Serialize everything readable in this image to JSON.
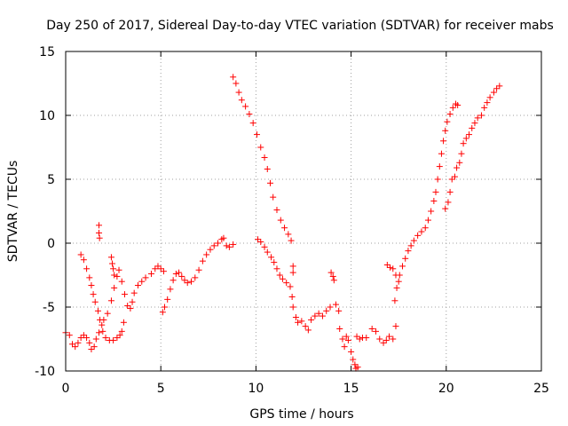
{
  "chart_data": {
    "type": "scatter",
    "title": "Day 250 of 2017, Sidereal Day-to-day VTEC variation (SDTVAR) for receiver mabs",
    "xlabel": "GPS time / hours",
    "ylabel": "SDTVAR / TECUs",
    "xlim": [
      0,
      25
    ],
    "ylim": [
      -10,
      15
    ],
    "xticks": [
      "0",
      "5",
      "10",
      "15",
      "20",
      "25"
    ],
    "yticks": [
      "-10",
      "-5",
      "0",
      "5",
      "10",
      "15"
    ],
    "grid": true,
    "marker": "plus",
    "color": "#ff0000",
    "series": [
      {
        "points": [
          [
            0.0,
            -7.0
          ],
          [
            0.2,
            -7.2
          ],
          [
            0.35,
            -7.9
          ],
          [
            0.5,
            -8.1
          ],
          [
            0.65,
            -7.8
          ],
          [
            0.8,
            -7.4
          ],
          [
            0.95,
            -7.2
          ],
          [
            1.1,
            -7.4
          ],
          [
            1.25,
            -7.8
          ],
          [
            1.35,
            -8.3
          ],
          [
            1.5,
            -8.1
          ],
          [
            1.6,
            -7.5
          ],
          [
            1.75,
            -7.0
          ],
          [
            1.9,
            -6.4
          ],
          [
            2.0,
            -6.0
          ],
          [
            2.2,
            -5.5
          ],
          [
            2.4,
            -4.5
          ],
          [
            2.55,
            -3.5
          ],
          [
            2.7,
            -2.6
          ],
          [
            2.8,
            -2.1
          ],
          [
            2.95,
            -3.0
          ],
          [
            3.1,
            -4.0
          ],
          [
            3.25,
            -4.9
          ],
          [
            3.4,
            -5.1
          ],
          [
            3.5,
            -4.6
          ],
          [
            3.6,
            -3.9
          ],
          [
            3.8,
            -3.3
          ],
          [
            4.0,
            -3.0
          ],
          [
            4.2,
            -2.7
          ],
          [
            4.5,
            -2.4
          ],
          [
            4.7,
            -2.0
          ],
          [
            4.85,
            -1.8
          ],
          [
            5.0,
            -2.0
          ],
          [
            5.15,
            -2.2
          ]
        ]
      },
      {
        "points": [
          [
            0.8,
            -0.9
          ],
          [
            0.95,
            -1.3
          ],
          [
            1.1,
            -2.0
          ],
          [
            1.25,
            -2.7
          ],
          [
            1.35,
            -3.3
          ],
          [
            1.45,
            -4.0
          ],
          [
            1.55,
            -4.6
          ],
          [
            1.7,
            -5.3
          ],
          [
            1.8,
            -6.0
          ],
          [
            1.95,
            -6.9
          ],
          [
            2.1,
            -7.4
          ],
          [
            2.3,
            -7.6
          ],
          [
            2.5,
            -7.6
          ],
          [
            2.7,
            -7.4
          ],
          [
            2.85,
            -7.2
          ],
          [
            2.95,
            -6.9
          ],
          [
            3.05,
            -6.2
          ]
        ]
      },
      {
        "points": [
          [
            1.75,
            1.4
          ],
          [
            1.75,
            0.8
          ],
          [
            1.78,
            0.4
          ],
          [
            2.4,
            -1.1
          ],
          [
            2.45,
            -1.6
          ],
          [
            2.5,
            -2.0
          ],
          [
            2.55,
            -2.5
          ]
        ]
      },
      {
        "points": [
          [
            5.1,
            -5.4
          ],
          [
            5.2,
            -5.0
          ],
          [
            5.35,
            -4.4
          ],
          [
            5.5,
            -3.6
          ],
          [
            5.65,
            -2.9
          ],
          [
            5.8,
            -2.4
          ],
          [
            5.95,
            -2.3
          ],
          [
            6.1,
            -2.6
          ],
          [
            6.25,
            -2.9
          ],
          [
            6.4,
            -3.1
          ],
          [
            6.6,
            -3.0
          ],
          [
            6.8,
            -2.7
          ],
          [
            7.0,
            -2.1
          ],
          [
            7.2,
            -1.4
          ],
          [
            7.4,
            -0.9
          ],
          [
            7.6,
            -0.5
          ],
          [
            7.8,
            -0.2
          ],
          [
            8.0,
            0.0
          ],
          [
            8.2,
            0.3
          ],
          [
            8.3,
            0.4
          ],
          [
            8.45,
            -0.2
          ],
          [
            8.6,
            -0.3
          ],
          [
            8.8,
            -0.1
          ]
        ]
      },
      {
        "points": [
          [
            8.8,
            13.0
          ],
          [
            8.95,
            12.5
          ],
          [
            9.1,
            11.8
          ],
          [
            9.25,
            11.2
          ],
          [
            9.45,
            10.7
          ],
          [
            9.65,
            10.1
          ],
          [
            9.85,
            9.4
          ],
          [
            10.05,
            8.5
          ],
          [
            10.25,
            7.5
          ],
          [
            10.45,
            6.7
          ],
          [
            10.6,
            5.8
          ],
          [
            10.75,
            4.7
          ],
          [
            10.9,
            3.6
          ],
          [
            11.1,
            2.6
          ],
          [
            11.3,
            1.8
          ],
          [
            11.5,
            1.2
          ],
          [
            11.7,
            0.7
          ],
          [
            11.85,
            0.2
          ]
        ]
      },
      {
        "points": [
          [
            10.1,
            0.3
          ],
          [
            10.25,
            0.1
          ],
          [
            10.45,
            -0.3
          ],
          [
            10.6,
            -0.7
          ],
          [
            10.8,
            -1.1
          ],
          [
            10.95,
            -1.5
          ],
          [
            11.1,
            -2.0
          ],
          [
            11.25,
            -2.5
          ],
          [
            11.4,
            -2.8
          ],
          [
            11.6,
            -3.1
          ],
          [
            11.8,
            -3.4
          ]
        ]
      },
      {
        "points": [
          [
            11.95,
            -1.8
          ],
          [
            11.95,
            -2.3
          ],
          [
            11.9,
            -4.2
          ],
          [
            11.95,
            -5.0
          ],
          [
            12.1,
            -5.8
          ],
          [
            12.2,
            -6.2
          ],
          [
            12.4,
            -6.1
          ],
          [
            12.6,
            -6.5
          ],
          [
            12.75,
            -6.8
          ],
          [
            12.9,
            -6.0
          ],
          [
            13.1,
            -5.7
          ],
          [
            13.3,
            -5.5
          ],
          [
            13.5,
            -5.7
          ],
          [
            13.7,
            -5.3
          ],
          [
            13.9,
            -5.0
          ]
        ]
      },
      {
        "points": [
          [
            13.95,
            -2.3
          ],
          [
            14.05,
            -2.6
          ],
          [
            14.1,
            -2.9
          ],
          [
            14.2,
            -4.8
          ],
          [
            14.35,
            -5.3
          ],
          [
            14.4,
            -6.7
          ],
          [
            14.55,
            -7.5
          ],
          [
            14.65,
            -8.1
          ],
          [
            14.75,
            -7.3
          ],
          [
            14.85,
            -7.6
          ],
          [
            15.0,
            -8.5
          ],
          [
            15.1,
            -9.1
          ],
          [
            15.2,
            -9.5
          ],
          [
            15.25,
            -9.8
          ],
          [
            15.35,
            -9.7
          ],
          [
            15.3,
            -7.3
          ],
          [
            15.45,
            -7.5
          ],
          [
            15.6,
            -7.4
          ],
          [
            15.8,
            -7.4
          ],
          [
            16.1,
            -6.7
          ],
          [
            16.3,
            -6.9
          ],
          [
            16.5,
            -7.5
          ],
          [
            16.7,
            -7.8
          ],
          [
            16.85,
            -7.6
          ],
          [
            17.0,
            -7.3
          ],
          [
            17.2,
            -7.5
          ],
          [
            17.35,
            -6.5
          ]
        ]
      },
      {
        "points": [
          [
            16.9,
            -1.7
          ],
          [
            17.05,
            -1.9
          ],
          [
            17.2,
            -2.0
          ],
          [
            17.35,
            -2.5
          ],
          [
            17.5,
            -3.0
          ],
          [
            17.3,
            -4.5
          ],
          [
            17.4,
            -3.5
          ],
          [
            17.55,
            -2.5
          ],
          [
            17.7,
            -1.8
          ],
          [
            17.85,
            -1.2
          ],
          [
            18.0,
            -0.6
          ],
          [
            18.15,
            -0.2
          ],
          [
            18.3,
            0.2
          ],
          [
            18.5,
            0.6
          ],
          [
            18.7,
            0.9
          ],
          [
            18.9,
            1.2
          ],
          [
            19.05,
            1.8
          ],
          [
            19.2,
            2.5
          ],
          [
            19.35,
            3.3
          ],
          [
            19.45,
            4.0
          ],
          [
            19.55,
            5.0
          ],
          [
            19.65,
            6.0
          ],
          [
            19.75,
            7.0
          ],
          [
            19.85,
            8.0
          ],
          [
            19.95,
            8.8
          ],
          [
            20.05,
            9.5
          ],
          [
            20.2,
            10.1
          ],
          [
            20.35,
            10.6
          ],
          [
            20.5,
            10.9
          ],
          [
            20.6,
            10.8
          ]
        ]
      },
      {
        "points": [
          [
            19.95,
            2.7
          ],
          [
            20.1,
            3.2
          ],
          [
            20.2,
            4.0
          ],
          [
            20.3,
            5.0
          ],
          [
            20.45,
            5.2
          ],
          [
            20.55,
            5.9
          ],
          [
            20.7,
            6.3
          ],
          [
            20.8,
            7.0
          ],
          [
            20.9,
            7.8
          ],
          [
            21.05,
            8.2
          ],
          [
            21.2,
            8.5
          ],
          [
            21.35,
            9.0
          ],
          [
            21.5,
            9.4
          ],
          [
            21.65,
            9.8
          ],
          [
            21.85,
            10.0
          ],
          [
            22.0,
            10.6
          ],
          [
            22.15,
            11.0
          ],
          [
            22.3,
            11.4
          ],
          [
            22.5,
            11.8
          ],
          [
            22.65,
            12.1
          ],
          [
            22.8,
            12.3
          ]
        ]
      }
    ]
  }
}
